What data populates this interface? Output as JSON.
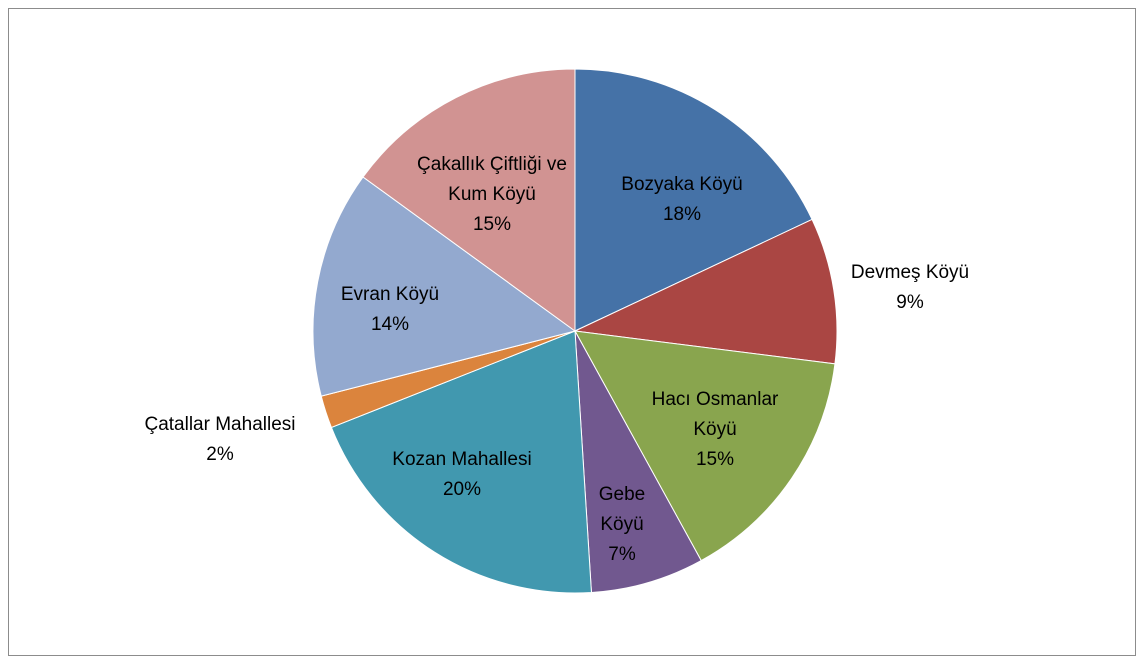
{
  "chart_data": {
    "type": "pie",
    "categories": [
      "Bozyaka Köyü",
      "Devmeş Köyü",
      "Hacı Osmanlar Köyü",
      "Gebe Köyü",
      "Kozan Mahallesi",
      "Çatallar Mahallesi",
      "Evran Köyü",
      "Çakallık Çiftliği ve Kum Köyü"
    ],
    "values": [
      18,
      9,
      15,
      7,
      20,
      2,
      14,
      15
    ],
    "value_labels": [
      "18%",
      "9%",
      "15%",
      "7%",
      "20%",
      "2%",
      "14%",
      "15%"
    ],
    "colors": [
      "#4572a7",
      "#aa4643",
      "#89a54e",
      "#71588f",
      "#4198af",
      "#db843d",
      "#93a9cf",
      "#d19392"
    ]
  }
}
